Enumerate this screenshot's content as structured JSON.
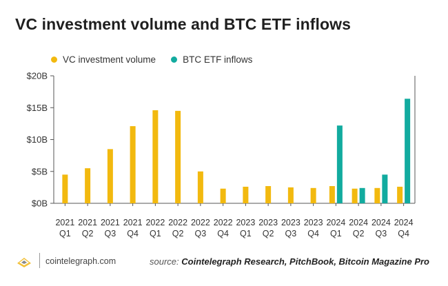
{
  "title": "VC investment volume and BTC ETF inflows",
  "legend": [
    {
      "label": "VC investment volume",
      "color": "#f2b90f"
    },
    {
      "label": "BTC ETF inflows",
      "color": "#12ab9f"
    }
  ],
  "chart_data": {
    "type": "bar",
    "title": "VC investment volume and BTC ETF inflows",
    "xlabel": "",
    "ylabel": "",
    "ylim": [
      0,
      20
    ],
    "yticks": [
      "$0B",
      "$5B",
      "$10B",
      "$15B",
      "$20B"
    ],
    "ytick_values": [
      0,
      5,
      10,
      15,
      20
    ],
    "grid": false,
    "legend_position": "top-left",
    "categories": [
      [
        "2021",
        "Q1"
      ],
      [
        "2021",
        "Q2"
      ],
      [
        "2021",
        "Q3"
      ],
      [
        "2021",
        "Q4"
      ],
      [
        "2022",
        "Q1"
      ],
      [
        "2022",
        "Q2"
      ],
      [
        "2022",
        "Q3"
      ],
      [
        "2022",
        "Q4"
      ],
      [
        "2023",
        "Q1"
      ],
      [
        "2023",
        "Q2"
      ],
      [
        "2023",
        "Q3"
      ],
      [
        "2023",
        "Q4"
      ],
      [
        "2024",
        "Q1"
      ],
      [
        "2024",
        "Q2"
      ],
      [
        "2024",
        "Q3"
      ],
      [
        "2024",
        "Q4"
      ]
    ],
    "series": [
      {
        "name": "VC investment volume",
        "color": "#f2b90f",
        "values": [
          4.5,
          5.5,
          8.5,
          12.1,
          14.6,
          14.5,
          5.0,
          2.3,
          2.6,
          2.7,
          2.5,
          2.4,
          2.7,
          2.3,
          2.4,
          2.6
        ]
      },
      {
        "name": "BTC ETF inflows",
        "color": "#12ab9f",
        "values": [
          null,
          null,
          null,
          null,
          null,
          null,
          null,
          null,
          null,
          null,
          null,
          null,
          12.2,
          2.4,
          4.5,
          16.4
        ]
      }
    ]
  },
  "footer": {
    "domain": "cointelegraph.com",
    "source_label": "source:",
    "source_text": "Cointelegraph Research, PitchBook, Bitcoin Magazine Pro"
  }
}
